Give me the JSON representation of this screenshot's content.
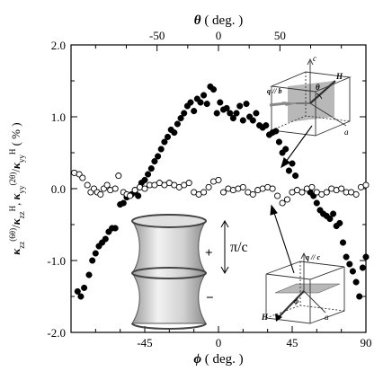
{
  "chart_data": {
    "type": "scatter",
    "title": "",
    "xlabel_symbol": "ϕ",
    "xlabel_unit": " ( deg. )",
    "top_xlabel_symbol": "θ",
    "top_xlabel_unit": " ( deg. )",
    "ylabel": "κzz(6θ)/κzzH, κyy(2θ)/κyyH (%)",
    "ylabel_parts": {
      "k1": "κ",
      "sup1": "(6θ)",
      "sub1": "zz",
      "slash1": "/",
      "k2": "κ",
      "sup2": "H",
      "sub2": "zz",
      "comma": ", ",
      "k3": "κ",
      "sup3": "(2θ)",
      "sub3": "yy",
      "slash2": "/",
      "k4": "κ",
      "sup4": "H",
      "sub4": "yy",
      "unit": " ( % )"
    },
    "xlim": [
      -90,
      90
    ],
    "ylim": [
      -2.0,
      2.0
    ],
    "x_ticks": [
      -45,
      0,
      45,
      90
    ],
    "x_tick_labels": [
      "-45",
      "0",
      "45",
      "90"
    ],
    "y_ticks": [
      -2.0,
      -1.0,
      0.0,
      1.0,
      2.0
    ],
    "y_tick_labels": [
      "-2.0",
      "-1.0",
      "0.0",
      "1.0",
      "2.0"
    ],
    "top_axis": {
      "relation": "theta = phi * 4/3",
      "ticks": [
        -50,
        0,
        50
      ],
      "tick_labels": [
        "-50",
        "0",
        "50"
      ]
    },
    "grid": false,
    "series": [
      {
        "marker": "filled-circle",
        "points": [
          [
            -86,
            -1.43
          ],
          [
            -84,
            -1.5
          ],
          [
            -82,
            -1.38
          ],
          [
            -79,
            -1.2
          ],
          [
            -77,
            -1.0
          ],
          [
            -75,
            -0.9
          ],
          [
            -73,
            -0.8
          ],
          [
            -71,
            -0.75
          ],
          [
            -69,
            -0.7
          ],
          [
            -67,
            -0.6
          ],
          [
            -65,
            -0.55
          ],
          [
            -63,
            -0.55
          ],
          [
            -60,
            -0.22
          ],
          [
            -58,
            -0.2
          ],
          [
            -56,
            -0.12
          ],
          [
            -53,
            -0.08
          ],
          [
            -51,
            -0.05
          ],
          [
            -49,
            -0.1
          ],
          [
            -47,
            0.08
          ],
          [
            -45,
            0.12
          ],
          [
            -43,
            0.2
          ],
          [
            -41,
            0.28
          ],
          [
            -39,
            0.38
          ],
          [
            -37,
            0.45
          ],
          [
            -35,
            0.55
          ],
          [
            -33,
            0.65
          ],
          [
            -31,
            0.72
          ],
          [
            -29,
            0.82
          ],
          [
            -27,
            0.78
          ],
          [
            -25,
            0.9
          ],
          [
            -23,
            0.98
          ],
          [
            -21,
            1.05
          ],
          [
            -19,
            1.15
          ],
          [
            -17,
            1.2
          ],
          [
            -15,
            1.08
          ],
          [
            -13,
            1.25
          ],
          [
            -11,
            1.2
          ],
          [
            -9,
            1.3
          ],
          [
            -7,
            1.18
          ],
          [
            -5,
            1.42
          ],
          [
            -3,
            1.38
          ],
          [
            -1,
            1.05
          ],
          [
            1,
            1.2
          ],
          [
            3,
            1.1
          ],
          [
            5,
            1.12
          ],
          [
            7,
            1.05
          ],
          [
            9,
            0.98
          ],
          [
            11,
            1.05
          ],
          [
            13,
            1.15
          ],
          [
            15,
            0.95
          ],
          [
            17,
            1.18
          ],
          [
            19,
            1.0
          ],
          [
            21,
            0.95
          ],
          [
            23,
            1.05
          ],
          [
            25,
            0.88
          ],
          [
            27,
            0.85
          ],
          [
            29,
            0.88
          ],
          [
            31,
            0.75
          ],
          [
            33,
            0.78
          ],
          [
            35,
            0.8
          ],
          [
            37,
            0.65
          ],
          [
            39,
            0.5
          ],
          [
            41,
            0.55
          ],
          [
            43,
            0.25
          ],
          [
            45,
            0.35
          ],
          [
            47,
            0.18
          ],
          [
            56,
            -0.05
          ],
          [
            58,
            -0.1
          ],
          [
            60,
            -0.2
          ],
          [
            62,
            -0.3
          ],
          [
            64,
            -0.35
          ],
          [
            66,
            -0.38
          ],
          [
            68,
            -0.42
          ],
          [
            70,
            -0.35
          ],
          [
            72,
            -0.52
          ],
          [
            74,
            -0.48
          ],
          [
            76,
            -0.75
          ],
          [
            78,
            -0.95
          ],
          [
            80,
            -1.05
          ],
          [
            82,
            -1.15
          ],
          [
            84,
            -1.3
          ],
          [
            86,
            -1.5
          ],
          [
            88,
            -1.1
          ],
          [
            90,
            -0.95
          ]
        ]
      },
      {
        "marker": "open-circle",
        "points": [
          [
            -88,
            0.22
          ],
          [
            -85,
            0.2
          ],
          [
            -83,
            0.15
          ],
          [
            -80,
            0.05
          ],
          [
            -78,
            -0.05
          ],
          [
            -76,
            0.0
          ],
          [
            -74,
            -0.05
          ],
          [
            -72,
            -0.08
          ],
          [
            -70,
            0.0
          ],
          [
            -68,
            0.05
          ],
          [
            -66,
            -0.02
          ],
          [
            -63,
            0.0
          ],
          [
            -61,
            0.18
          ],
          [
            -58,
            -0.05
          ],
          [
            -56,
            -0.08
          ],
          [
            -54,
            -0.1
          ],
          [
            -51,
            -0.02
          ],
          [
            -48,
            0.02
          ],
          [
            -45,
            0.0
          ],
          [
            -42,
            0.05
          ],
          [
            -39,
            0.05
          ],
          [
            -36,
            0.08
          ],
          [
            -33,
            0.05
          ],
          [
            -30,
            0.08
          ],
          [
            -27,
            0.05
          ],
          [
            -24,
            0.02
          ],
          [
            -21,
            0.05
          ],
          [
            -18,
            0.08
          ],
          [
            -15,
            -0.05
          ],
          [
            -12,
            -0.08
          ],
          [
            -9,
            -0.05
          ],
          [
            -6,
            0.02
          ],
          [
            -3,
            0.1
          ],
          [
            0,
            0.12
          ],
          [
            3,
            -0.05
          ],
          [
            6,
            0.0
          ],
          [
            9,
            -0.02
          ],
          [
            12,
            0.0
          ],
          [
            15,
            0.02
          ],
          [
            18,
            -0.05
          ],
          [
            21,
            -0.08
          ],
          [
            24,
            -0.02
          ],
          [
            27,
            0.0
          ],
          [
            30,
            0.02
          ],
          [
            33,
            0.0
          ],
          [
            36,
            -0.1
          ],
          [
            39,
            -0.2
          ],
          [
            42,
            -0.15
          ],
          [
            45,
            -0.05
          ],
          [
            48,
            -0.02
          ],
          [
            51,
            -0.05
          ],
          [
            54,
            0.0
          ],
          [
            57,
            0.02
          ],
          [
            60,
            -0.05
          ],
          [
            63,
            -0.08
          ],
          [
            66,
            -0.05
          ],
          [
            69,
            0.0
          ],
          [
            72,
            -0.02
          ],
          [
            75,
            0.0
          ],
          [
            78,
            -0.05
          ],
          [
            81,
            -0.05
          ],
          [
            84,
            -0.08
          ],
          [
            87,
            0.02
          ],
          [
            90,
            0.05
          ]
        ]
      }
    ],
    "annotations": {
      "fermi_surface_plus": "+",
      "fermi_surface_minus": "−",
      "period_label": "π/c",
      "upper_inset": {
        "c": "c",
        "q": "q // b",
        "theta": "θ",
        "H": "H",
        "a": "a"
      },
      "lower_inset": {
        "q": "q // c",
        "phi": "ϕ",
        "H": "H",
        "a": "a"
      }
    }
  }
}
